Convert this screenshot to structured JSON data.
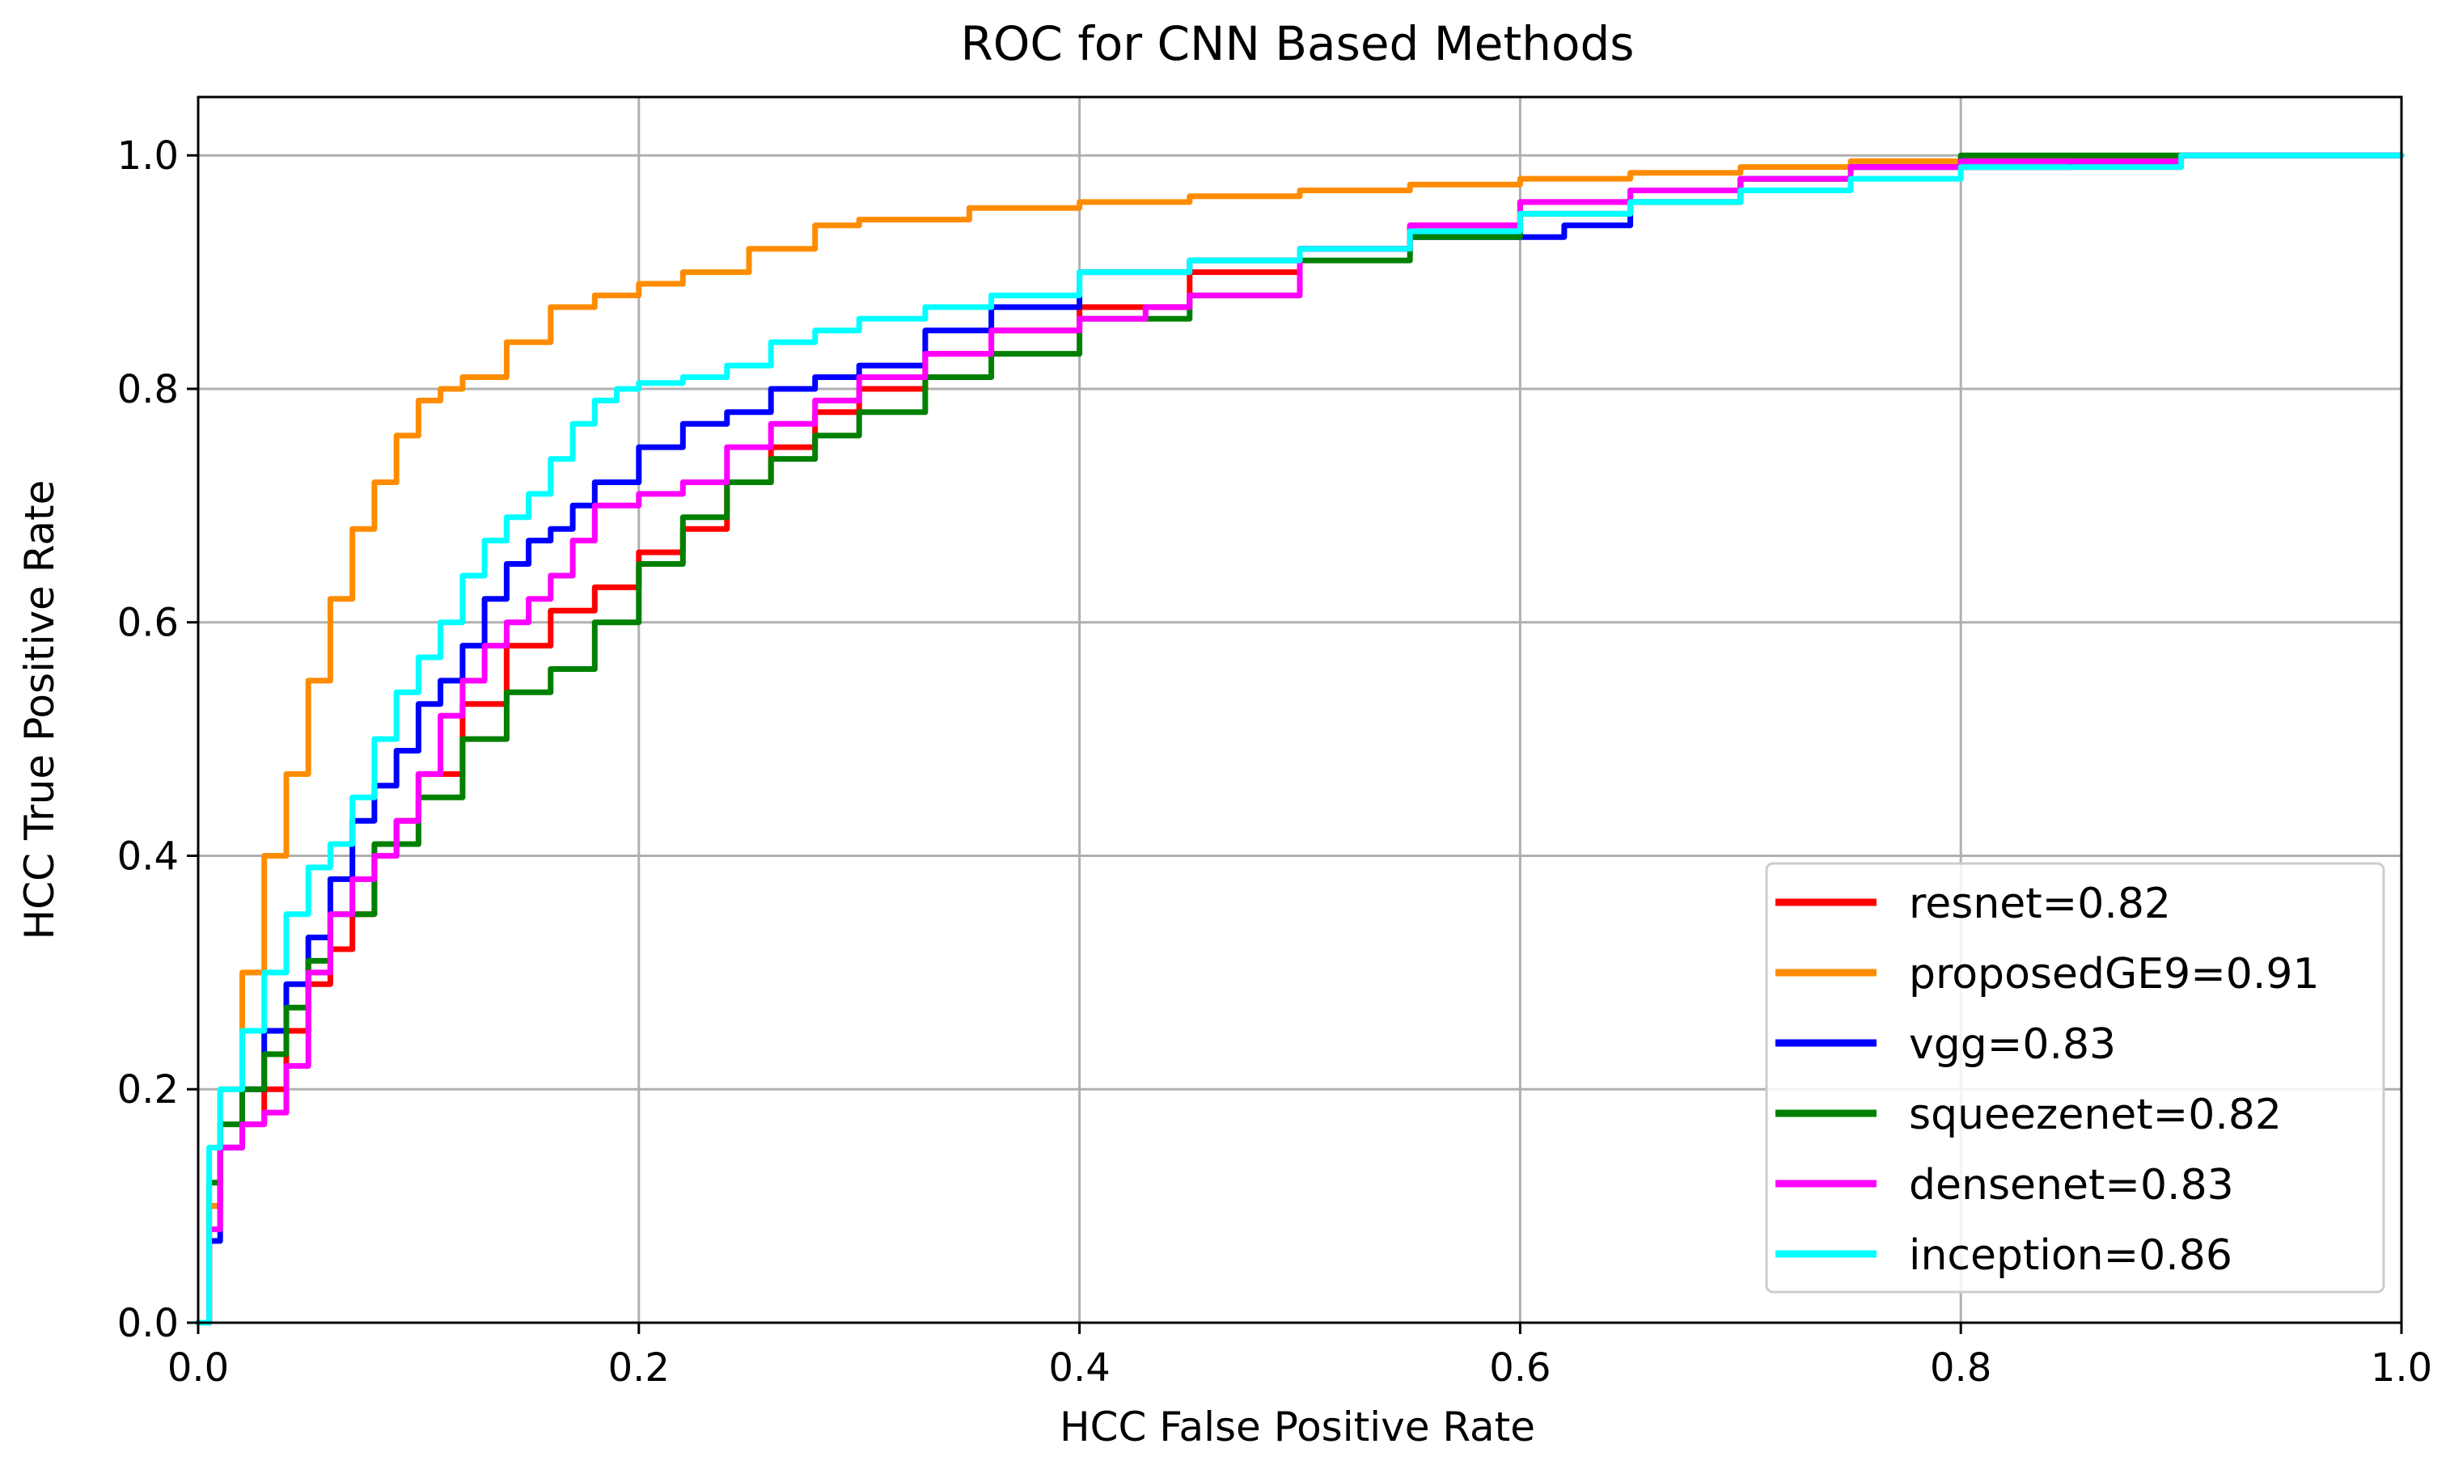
{
  "chart_data": {
    "type": "line",
    "title": "ROC for CNN Based Methods",
    "xlabel": "HCC False Positive Rate",
    "ylabel": "HCC True Positive Rate",
    "xlim": [
      0.0,
      1.0
    ],
    "ylim": [
      0.0,
      1.05
    ],
    "xticks": [
      "0.0",
      "0.2",
      "0.4",
      "0.6",
      "0.8",
      "1.0"
    ],
    "yticks": [
      "0.0",
      "0.2",
      "0.4",
      "0.6",
      "0.8",
      "1.0"
    ],
    "grid": true,
    "legend_position": "lower-right",
    "series": [
      {
        "name": "resnet=0.82",
        "color": "#ff0000",
        "x": [
          0,
          0.005,
          0.01,
          0.02,
          0.03,
          0.04,
          0.05,
          0.06,
          0.07,
          0.08,
          0.09,
          0.1,
          0.12,
          0.14,
          0.16,
          0.18,
          0.2,
          0.22,
          0.24,
          0.26,
          0.28,
          0.3,
          0.33,
          0.36,
          0.4,
          0.45,
          0.5,
          0.55,
          0.6,
          0.65,
          0.7,
          0.75,
          0.8,
          0.9,
          1.0
        ],
        "y": [
          0,
          0.1,
          0.15,
          0.17,
          0.2,
          0.25,
          0.29,
          0.32,
          0.35,
          0.4,
          0.43,
          0.47,
          0.53,
          0.58,
          0.61,
          0.63,
          0.66,
          0.68,
          0.72,
          0.75,
          0.78,
          0.8,
          0.83,
          0.85,
          0.87,
          0.9,
          0.92,
          0.94,
          0.96,
          0.97,
          0.98,
          0.99,
          0.99,
          1.0,
          1.0
        ]
      },
      {
        "name": "proposedGE9=0.91",
        "color": "#ff8c00",
        "x": [
          0,
          0.005,
          0.01,
          0.02,
          0.03,
          0.04,
          0.05,
          0.06,
          0.07,
          0.08,
          0.09,
          0.1,
          0.11,
          0.12,
          0.14,
          0.16,
          0.18,
          0.2,
          0.22,
          0.25,
          0.28,
          0.3,
          0.35,
          0.4,
          0.45,
          0.5,
          0.55,
          0.6,
          0.65,
          0.7,
          0.75,
          0.8,
          0.9,
          1.0
        ],
        "y": [
          0,
          0.1,
          0.2,
          0.3,
          0.4,
          0.47,
          0.55,
          0.62,
          0.68,
          0.72,
          0.76,
          0.79,
          0.8,
          0.81,
          0.84,
          0.87,
          0.88,
          0.89,
          0.9,
          0.92,
          0.94,
          0.945,
          0.955,
          0.96,
          0.965,
          0.97,
          0.975,
          0.98,
          0.985,
          0.99,
          0.995,
          0.998,
          1.0,
          1.0
        ]
      },
      {
        "name": "vgg=0.83",
        "color": "#0000ff",
        "x": [
          0,
          0.005,
          0.01,
          0.02,
          0.03,
          0.04,
          0.05,
          0.06,
          0.07,
          0.08,
          0.09,
          0.1,
          0.11,
          0.12,
          0.13,
          0.14,
          0.15,
          0.16,
          0.17,
          0.18,
          0.2,
          0.22,
          0.24,
          0.26,
          0.28,
          0.3,
          0.33,
          0.36,
          0.4,
          0.45,
          0.5,
          0.55,
          0.6,
          0.62,
          0.65,
          0.7,
          0.75,
          0.8,
          0.85,
          0.9,
          1.0
        ],
        "y": [
          0,
          0.07,
          0.15,
          0.2,
          0.25,
          0.29,
          0.33,
          0.38,
          0.43,
          0.46,
          0.49,
          0.53,
          0.55,
          0.58,
          0.62,
          0.65,
          0.67,
          0.68,
          0.7,
          0.72,
          0.75,
          0.77,
          0.78,
          0.8,
          0.81,
          0.82,
          0.85,
          0.87,
          0.9,
          0.91,
          0.92,
          0.93,
          0.93,
          0.94,
          0.96,
          0.98,
          0.99,
          0.99,
          0.995,
          1.0,
          1.0
        ]
      },
      {
        "name": "squeezenet=0.82",
        "color": "#008000",
        "x": [
          0,
          0.005,
          0.01,
          0.02,
          0.03,
          0.04,
          0.05,
          0.06,
          0.08,
          0.1,
          0.12,
          0.14,
          0.16,
          0.18,
          0.2,
          0.22,
          0.24,
          0.26,
          0.28,
          0.3,
          0.33,
          0.36,
          0.4,
          0.45,
          0.5,
          0.55,
          0.6,
          0.65,
          0.7,
          0.75,
          0.8,
          0.85,
          0.9,
          1.0
        ],
        "y": [
          0,
          0.12,
          0.17,
          0.2,
          0.23,
          0.27,
          0.31,
          0.35,
          0.41,
          0.45,
          0.5,
          0.54,
          0.56,
          0.6,
          0.65,
          0.69,
          0.72,
          0.74,
          0.76,
          0.78,
          0.81,
          0.83,
          0.86,
          0.88,
          0.91,
          0.93,
          0.95,
          0.96,
          0.98,
          0.99,
          1.0,
          1.0,
          1.0,
          1.0
        ]
      },
      {
        "name": "densenet=0.83",
        "color": "#ff00ff",
        "x": [
          0,
          0.005,
          0.01,
          0.02,
          0.03,
          0.04,
          0.05,
          0.06,
          0.07,
          0.08,
          0.09,
          0.1,
          0.11,
          0.12,
          0.13,
          0.14,
          0.15,
          0.16,
          0.17,
          0.18,
          0.2,
          0.22,
          0.24,
          0.26,
          0.28,
          0.3,
          0.33,
          0.36,
          0.4,
          0.43,
          0.45,
          0.5,
          0.55,
          0.6,
          0.65,
          0.7,
          0.75,
          0.8,
          0.9,
          1.0
        ],
        "y": [
          0,
          0.08,
          0.15,
          0.17,
          0.18,
          0.22,
          0.3,
          0.35,
          0.38,
          0.4,
          0.43,
          0.47,
          0.52,
          0.55,
          0.58,
          0.6,
          0.62,
          0.64,
          0.67,
          0.7,
          0.71,
          0.72,
          0.75,
          0.77,
          0.79,
          0.81,
          0.83,
          0.85,
          0.86,
          0.87,
          0.88,
          0.92,
          0.94,
          0.96,
          0.97,
          0.98,
          0.99,
          0.995,
          1.0,
          1.0
        ]
      },
      {
        "name": "inception=0.86",
        "color": "#00ffff",
        "x": [
          0,
          0.005,
          0.01,
          0.02,
          0.03,
          0.04,
          0.05,
          0.06,
          0.07,
          0.08,
          0.09,
          0.1,
          0.11,
          0.12,
          0.13,
          0.14,
          0.15,
          0.16,
          0.17,
          0.18,
          0.19,
          0.2,
          0.22,
          0.24,
          0.26,
          0.28,
          0.3,
          0.33,
          0.36,
          0.4,
          0.45,
          0.5,
          0.55,
          0.6,
          0.65,
          0.7,
          0.75,
          0.8,
          0.9,
          1.0
        ],
        "y": [
          0,
          0.15,
          0.2,
          0.25,
          0.3,
          0.35,
          0.39,
          0.41,
          0.45,
          0.5,
          0.54,
          0.57,
          0.6,
          0.64,
          0.67,
          0.69,
          0.71,
          0.74,
          0.77,
          0.79,
          0.8,
          0.805,
          0.81,
          0.82,
          0.84,
          0.85,
          0.86,
          0.87,
          0.88,
          0.9,
          0.91,
          0.92,
          0.935,
          0.95,
          0.96,
          0.97,
          0.98,
          0.99,
          1.0,
          1.0
        ]
      }
    ]
  }
}
